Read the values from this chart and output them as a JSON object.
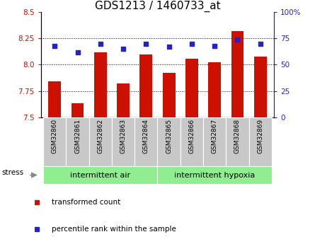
{
  "title": "GDS1213 / 1460733_at",
  "samples": [
    "GSM32860",
    "GSM32861",
    "GSM32862",
    "GSM32863",
    "GSM32864",
    "GSM32865",
    "GSM32866",
    "GSM32867",
    "GSM32868",
    "GSM32869"
  ],
  "transformed_count": [
    7.84,
    7.63,
    8.12,
    7.82,
    8.1,
    7.92,
    8.06,
    8.02,
    8.32,
    8.08
  ],
  "percentile_rank": [
    68,
    62,
    70,
    65,
    70,
    67,
    70,
    68,
    74,
    70
  ],
  "ylim_left": [
    7.5,
    8.5
  ],
  "ylim_right": [
    0,
    100
  ],
  "yticks_left": [
    7.5,
    7.75,
    8.0,
    8.25,
    8.5
  ],
  "yticks_right": [
    0,
    25,
    50,
    75,
    100
  ],
  "bar_color": "#cc1100",
  "dot_color": "#2222cc",
  "bar_bottom": 7.5,
  "group1_label": "intermittent air",
  "group2_label": "intermittent hypoxia",
  "legend_bar_label": "transformed count",
  "legend_dot_label": "percentile rank within the sample",
  "stress_label": "stress",
  "group_bg_color": "#90ee90",
  "tick_label_bg": "#c8c8c8",
  "title_fontsize": 11,
  "tick_fontsize": 7.5,
  "label_fontsize": 8
}
